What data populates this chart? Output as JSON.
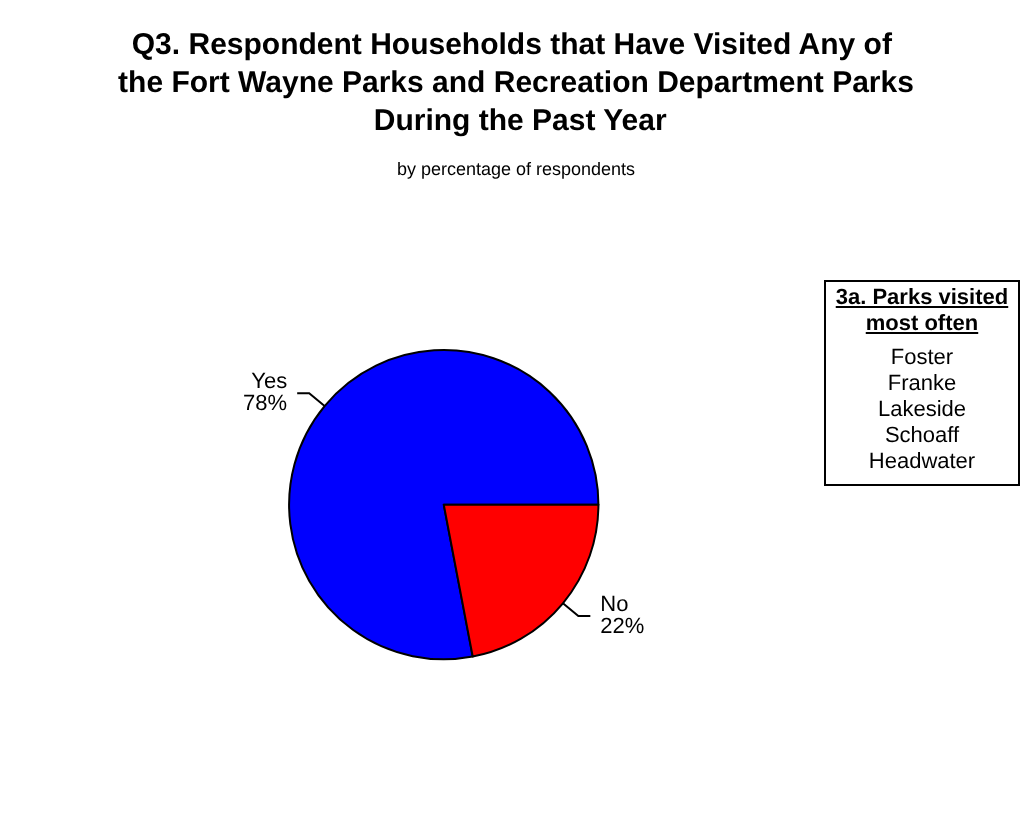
{
  "chart_data": {
    "type": "pie",
    "title": "Q3. Respondent Households that Have Visited Any of the Fort Wayne Parks and Recreation Department Parks During the Past Year",
    "subtitle": "by percentage of respondents",
    "categories": [
      "Yes",
      "No"
    ],
    "values": [
      78,
      22
    ],
    "colors": [
      "#0000ff",
      "#ff0000"
    ],
    "value_labels": [
      "78%",
      "22%"
    ],
    "annotations": [
      "3a. Parks visited most often",
      "Foster",
      "Franke",
      "Lakeside",
      "Schoaff",
      "Headwater"
    ]
  }
}
